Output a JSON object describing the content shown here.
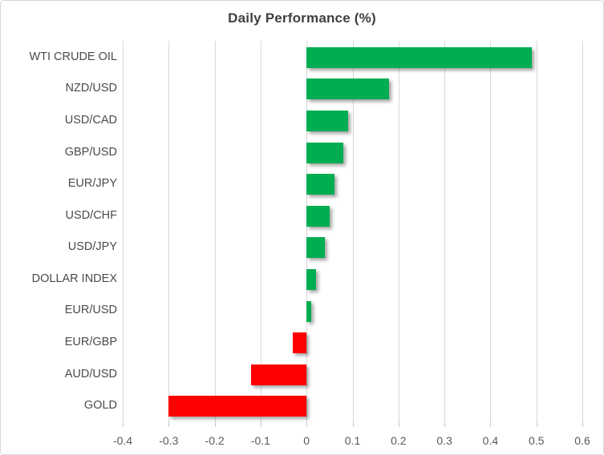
{
  "chart_data": {
    "type": "bar",
    "orientation": "horizontal",
    "title": "Daily Performance (%)",
    "categories": [
      "WTI CRUDE OIL",
      "NZD/USD",
      "USD/CAD",
      "GBP/USD",
      "EUR/JPY",
      "USD/CHF",
      "USD/JPY",
      "DOLLAR INDEX",
      "EUR/USD",
      "EUR/GBP",
      "AUD/USD",
      "GOLD"
    ],
    "values": [
      0.49,
      0.18,
      0.09,
      0.08,
      0.06,
      0.05,
      0.04,
      0.02,
      0.01,
      -0.03,
      -0.12,
      -0.3
    ],
    "xlabel": "",
    "ylabel": "",
    "xlim": [
      -0.4,
      0.6
    ],
    "x_ticks": [
      -0.4,
      -0.3,
      -0.2,
      -0.1,
      0,
      0.1,
      0.2,
      0.3,
      0.4,
      0.5,
      0.6
    ],
    "x_tick_labels": [
      "-0.4",
      "-0.3",
      "-0.2",
      "-0.1",
      "0",
      "0.1",
      "0.2",
      "0.3",
      "0.4",
      "0.5",
      "0.6"
    ],
    "grid": true,
    "legend": false,
    "colors": {
      "positive": "#00ad51",
      "negative": "#fe0000",
      "gridline": "#d9d9d9",
      "axis_text": "#595959",
      "category_text": "#4a4a4a",
      "title_text": "#3f3f3f"
    }
  }
}
